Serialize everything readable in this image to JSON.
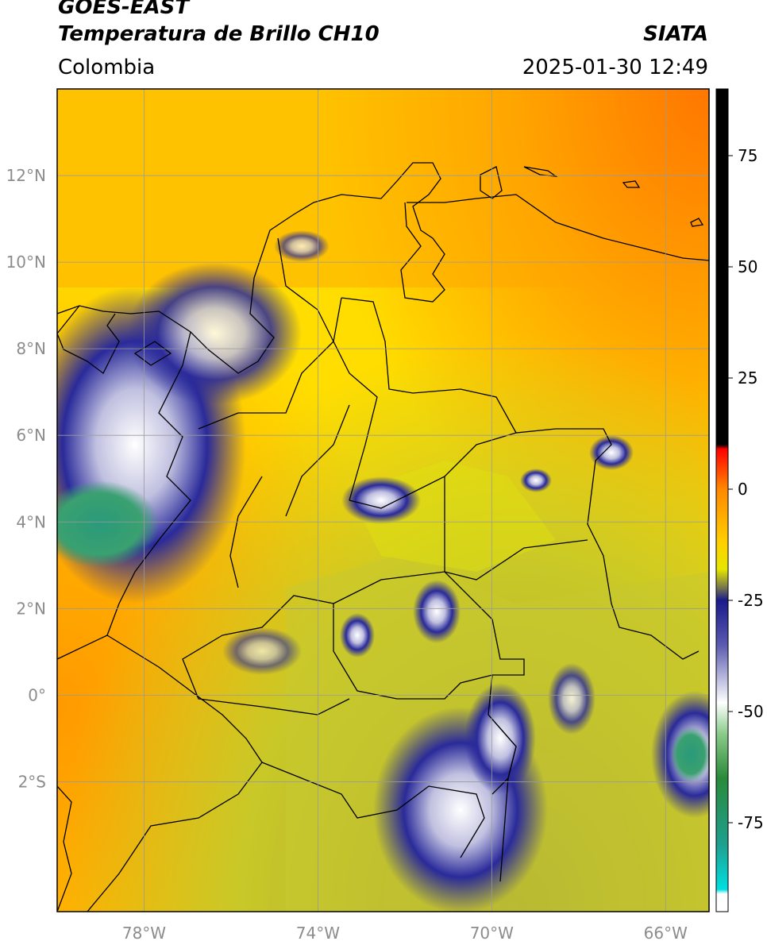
{
  "header": {
    "title_line1": "GOES-EAST",
    "title_line2": "Temperatura de Brillo CH10",
    "region": "Colombia",
    "source": "SIATA",
    "datetime": "2025-01-30 12:49"
  },
  "map": {
    "extent": {
      "lon": [
        -80,
        -65
      ],
      "lat": [
        -5,
        14
      ]
    },
    "lat_ticks": [
      {
        "value": 12,
        "label": "12°N"
      },
      {
        "value": 10,
        "label": "10°N"
      },
      {
        "value": 8,
        "label": "8°N"
      },
      {
        "value": 6,
        "label": "6°N"
      },
      {
        "value": 4,
        "label": "4°N"
      },
      {
        "value": 2,
        "label": "2°N"
      },
      {
        "value": 0,
        "label": "0°"
      },
      {
        "value": -2,
        "label": "2°S"
      }
    ],
    "lon_ticks": [
      {
        "value": -78,
        "label": "78°W"
      },
      {
        "value": -74,
        "label": "74°W"
      },
      {
        "value": -70,
        "label": "70°W"
      },
      {
        "value": -66,
        "label": "66°W"
      }
    ],
    "grid": true,
    "colors": {
      "warm": "#ff9900",
      "mid": "#ffd200",
      "cool": "#e8e800",
      "cold": "#a8a800",
      "very_cold": "#1a1a8c",
      "coldest": "#f0f0f0",
      "green": "#2a9a6a",
      "grid": "#9a9a9a",
      "border": "#000000"
    }
  },
  "colorbar": {
    "min": -95,
    "max": 90,
    "ticks": [
      75,
      50,
      25,
      0,
      -25,
      -50,
      -75
    ],
    "stops": [
      {
        "value": 90,
        "color": "#000000"
      },
      {
        "value": 10,
        "color": "#000000"
      },
      {
        "value": 9,
        "color": "#ff0000"
      },
      {
        "value": 0,
        "color": "#ff8800"
      },
      {
        "value": -12,
        "color": "#ffd000"
      },
      {
        "value": -18,
        "color": "#e6e600"
      },
      {
        "value": -22,
        "color": "#7a7a4a"
      },
      {
        "value": -25,
        "color": "#1a1a8c"
      },
      {
        "value": -35,
        "color": "#5a5ab0"
      },
      {
        "value": -48,
        "color": "#ffffff"
      },
      {
        "value": -55,
        "color": "#8acb8a"
      },
      {
        "value": -65,
        "color": "#2a8a3a"
      },
      {
        "value": -80,
        "color": "#1fa090"
      },
      {
        "value": -90,
        "color": "#00e0e0"
      },
      {
        "value": -91,
        "color": "#ffffff"
      },
      {
        "value": -95,
        "color": "#ffffff"
      }
    ]
  }
}
